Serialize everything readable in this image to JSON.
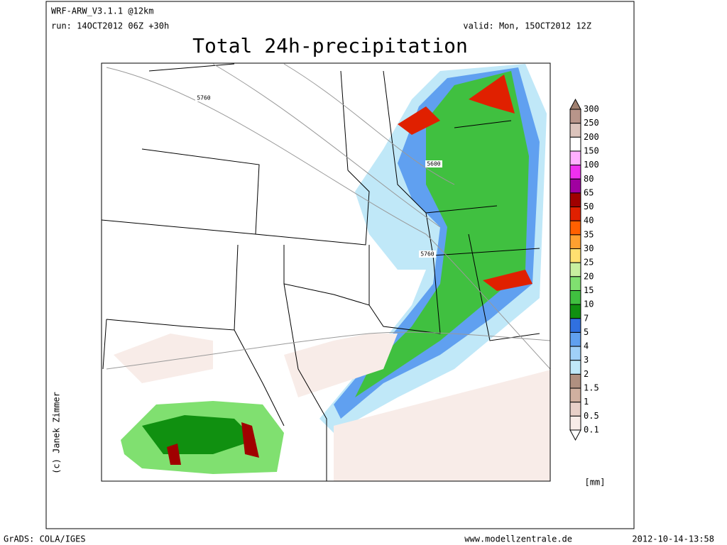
{
  "header": {
    "model": "WRF-ARW_V3.1.1 @12km",
    "run": "run: 14OCT2012 06Z +30h",
    "valid": "valid: Mon, 15OCT2012 12Z",
    "title": "Total 24h-precipitation"
  },
  "map": {
    "contour_labels": [
      "5760",
      "5600",
      "5760"
    ],
    "credit": "(c) Janek Zimmer"
  },
  "legend": {
    "labels": [
      "300",
      "250",
      "200",
      "150",
      "100",
      "80",
      "65",
      "50",
      "40",
      "35",
      "30",
      "25",
      "20",
      "15",
      "10",
      "7",
      "5",
      "4",
      "3",
      "2",
      "1.5",
      "1",
      "0.5",
      "0.1"
    ],
    "colors": [
      "#a08070",
      "#b8958a",
      "#dcc4bc",
      "#ffffff",
      "#ffb0ff",
      "#f030f0",
      "#a000a0",
      "#a00000",
      "#e02000",
      "#ff6000",
      "#ffa030",
      "#ffe070",
      "#c8f0a0",
      "#80e070",
      "#40c040",
      "#109010",
      "#3070e0",
      "#60a0f0",
      "#a0d0f8",
      "#c0e8f8",
      "#b09080",
      "#d0b0a0",
      "#e8d0c8",
      "#f8ece8",
      "#ffffff"
    ],
    "unit": "[mm]"
  },
  "footer": {
    "software": "GrADS: COLA/IGES",
    "site": "www.modellzentrale.de",
    "timestamp": "2012-10-14-13:58"
  }
}
